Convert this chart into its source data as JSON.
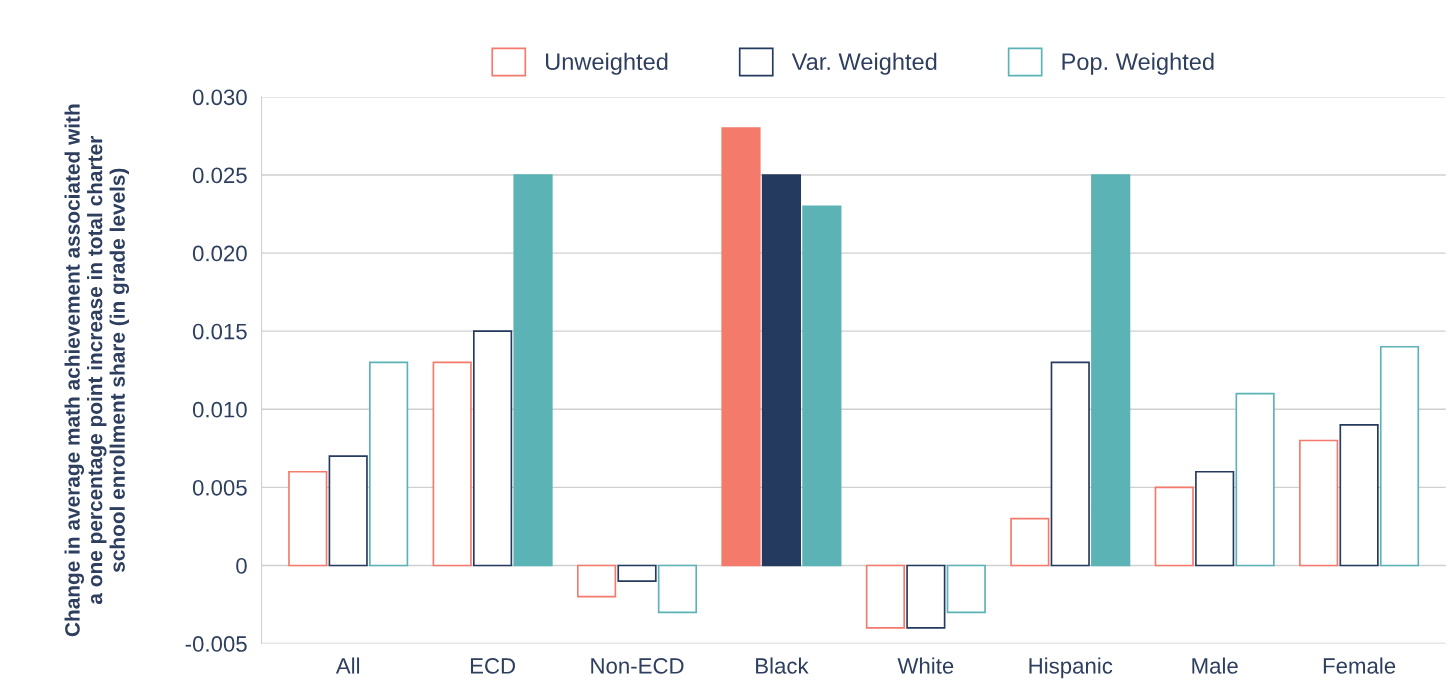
{
  "chart_data": {
    "type": "bar",
    "ylabel": "Change in average math achievement associated with\na one percentage point increase in total charter\nschool enrollment share (in grade levels)",
    "categories": [
      "All",
      "ECD",
      "Non-ECD",
      "Black",
      "White",
      "Hispanic",
      "Male",
      "Female"
    ],
    "series": [
      {
        "name": "Unweighted",
        "color": "#f47a6b",
        "values": [
          0.006,
          0.013,
          -0.002,
          0.028,
          -0.004,
          0.003,
          0.005,
          0.008
        ],
        "colors": [
          "#ffffff",
          "#ffffff",
          "#ffffff",
          "#f47a6b",
          "#ffffff",
          "#ffffff",
          "#ffffff",
          "#ffffff"
        ]
      },
      {
        "name": "Var. Weighted",
        "color": "#243a5e",
        "values": [
          0.007,
          0.015,
          -0.001,
          0.025,
          -0.004,
          0.013,
          0.006,
          0.009
        ],
        "colors": [
          "#ffffff",
          "#ffffff",
          "#ffffff",
          "#243a5e",
          "#ffffff",
          "#ffffff",
          "#ffffff",
          "#ffffff"
        ]
      },
      {
        "name": "Pop. Weighted",
        "color": "#5bb3b5",
        "values": [
          0.013,
          0.025,
          -0.003,
          0.023,
          -0.003,
          0.025,
          0.011,
          0.014
        ],
        "colors": [
          "#ffffff",
          "#5bb3b5",
          "#ffffff",
          "#5bb3b5",
          "#ffffff",
          "#5bb3b5",
          "#ffffff",
          "#ffffff"
        ]
      }
    ],
    "ylim": [
      -0.005,
      0.03
    ],
    "yticks": [
      {
        "value": -0.005,
        "label": "-0.005"
      },
      {
        "value": 0,
        "label": "0"
      },
      {
        "value": 0.005,
        "label": "0.005"
      },
      {
        "value": 0.01,
        "label": "0.010"
      },
      {
        "value": 0.015,
        "label": "0.015"
      },
      {
        "value": 0.02,
        "label": "0.020"
      },
      {
        "value": 0.025,
        "label": "0.025"
      },
      {
        "value": 0.03,
        "label": "0.030"
      }
    ],
    "grid": "y",
    "legend": "top"
  }
}
